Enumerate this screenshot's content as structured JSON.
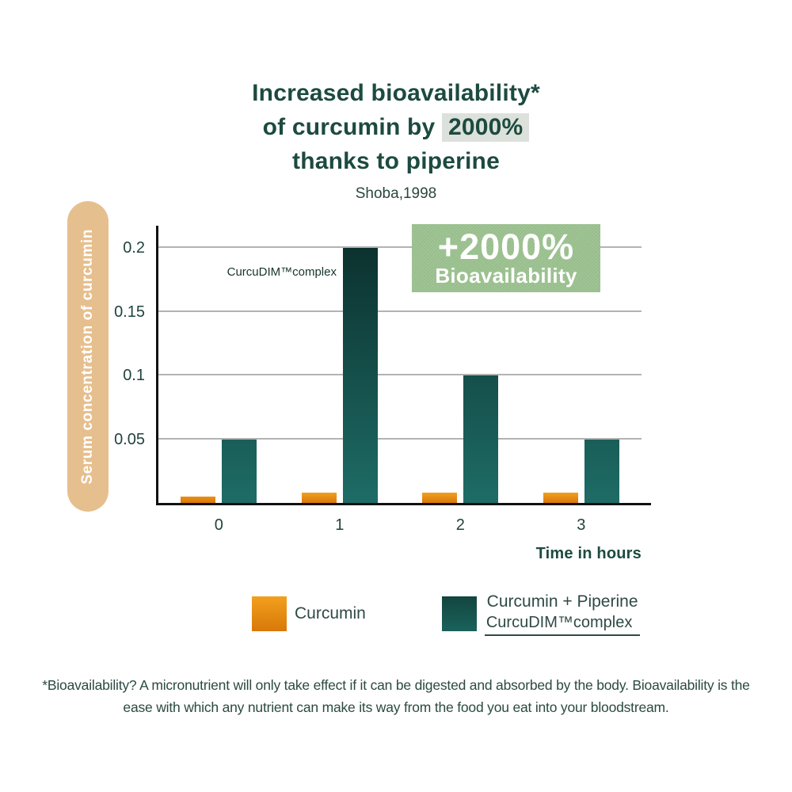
{
  "header": {
    "title_line1": "Increased bioavailability*",
    "title_line2_prefix": "of curcumin by",
    "title_highlight": "2000%",
    "title_line3": "thanks to piperine",
    "subtitle": "Shoba,1998"
  },
  "badge": {
    "line1": "+2000%",
    "line2": "Bioavailability",
    "bg_color": "#9cc290",
    "text_color": "#ffffff"
  },
  "chart_data": {
    "type": "bar",
    "categories": [
      "0",
      "1",
      "2",
      "3"
    ],
    "series": [
      {
        "name": "Curcumin",
        "color_top": "#f3a01e",
        "color_bottom": "#d8780a",
        "values": [
          0.005,
          0.008,
          0.008,
          0.008
        ]
      },
      {
        "name": "Curcumin + Piperine",
        "color_top": "#0c322f",
        "color_bottom": "#1e6c66",
        "values": [
          0.05,
          0.2,
          0.1,
          0.05
        ]
      }
    ],
    "title": "Increased bioavailability* of curcumin by 2000% thanks to piperine",
    "source": "Shoba,1998",
    "xlabel": "Time in hours",
    "ylabel": "Serum concentration of curcumin",
    "ylim": [
      0,
      0.22
    ],
    "yticks": [
      0.05,
      0.1,
      0.15,
      0.2
    ],
    "grid": true,
    "legend_position": "bottom",
    "annotation": "CurcuDIM™complex"
  },
  "legend": {
    "curcumin_label": "Curcumin",
    "piperine_label_line1": "Curcumin + Piperine",
    "piperine_label_line2": "CurcuDIM™complex"
  },
  "footnote": {
    "text": "*Bioavailability? A micronutrient will only take effect if it can be digested and absorbed by the body. Bioavailability is the ease with which any nutrient can make its way from the food you eat into your bloodstream."
  },
  "colors": {
    "title_text": "#1d4a40",
    "title_highlight_bg": "#dce2db",
    "axis": "#111111",
    "gridline": "#b3b3b3",
    "tick_text": "#21433c",
    "ylabel_pill_bg": "#e6bf8e",
    "ylabel_text": "#ffffff",
    "footnote_text": "#2b4a42"
  }
}
